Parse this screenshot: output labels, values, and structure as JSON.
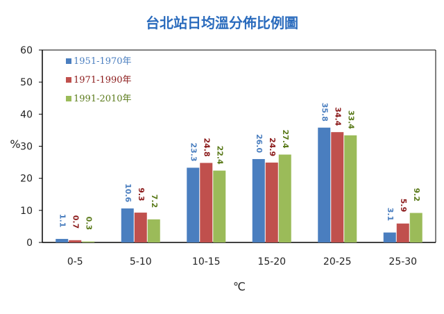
{
  "chart_data": {
    "type": "bar",
    "title": "台北站日均溫分佈比例圖",
    "xlabel": "℃",
    "ylabel": "%",
    "ylim": [
      0,
      60
    ],
    "yticks": [
      0,
      10,
      20,
      30,
      40,
      50,
      60
    ],
    "categories": [
      "0-5",
      "5-10",
      "10-15",
      "15-20",
      "20-25",
      "25-30"
    ],
    "grid": false,
    "legend_position": "top-left",
    "series": [
      {
        "name": "1951-1970年",
        "color": "#4a7ebf",
        "label_color": "#4a7ebf",
        "values": [
          1.1,
          10.6,
          23.3,
          26.0,
          35.8,
          3.1
        ],
        "labels": [
          "1.1",
          "10.6",
          "23.3",
          "26.0",
          "35.8",
          "3.1"
        ]
      },
      {
        "name": "1971-1990年",
        "color": "#c0504d",
        "label_color": "#8b1a1a",
        "values": [
          0.7,
          9.3,
          24.8,
          24.9,
          34.4,
          5.9
        ],
        "labels": [
          "0.7",
          "9.3",
          "24.8",
          "24.9",
          "34.4",
          "5.9"
        ]
      },
      {
        "name": "1991-2010年",
        "color": "#9bbb59",
        "label_color": "#5a7a1a",
        "values": [
          0.3,
          7.2,
          22.4,
          27.4,
          33.4,
          9.2
        ],
        "labels": [
          "0.3",
          "7.2",
          "22.4",
          "27.4",
          "33.4",
          "9.2"
        ]
      }
    ]
  }
}
